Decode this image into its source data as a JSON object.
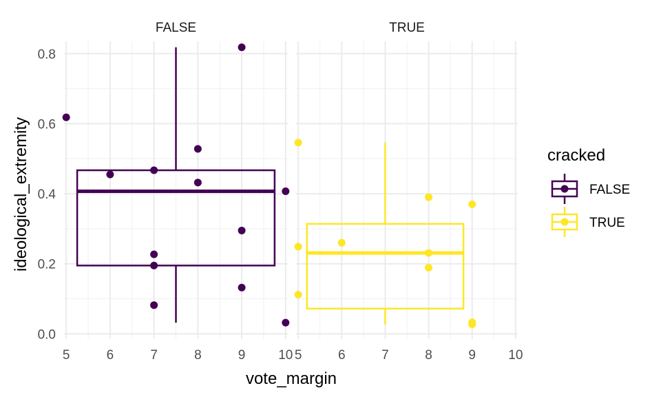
{
  "chart_data": {
    "type": "boxplot",
    "xlabel": "vote_margin",
    "ylabel": "ideological_extremity",
    "xlim": [
      4.95,
      10.05
    ],
    "ylim": [
      -0.015,
      0.835
    ],
    "x_ticks": [
      5,
      6,
      7,
      8,
      9,
      10
    ],
    "y_ticks": [
      0.0,
      0.2,
      0.4,
      0.6,
      0.8
    ],
    "y_tick_labels": [
      "0.0",
      "0.2",
      "0.4",
      "0.6",
      "0.8"
    ],
    "grid": true,
    "legend": {
      "title": "cracked",
      "position": "right",
      "entries": [
        {
          "label": "FALSE",
          "color": "#440154"
        },
        {
          "label": "TRUE",
          "color": "#FDE725"
        }
      ]
    },
    "facets": [
      {
        "label": "FALSE",
        "color": "#440154",
        "box": {
          "x_left": 5.25,
          "x_right": 9.75,
          "x_center": 7.5,
          "q1": 0.195,
          "median": 0.407,
          "q3": 0.467,
          "whisker_low": 0.032,
          "whisker_high": 0.818
        },
        "points": [
          {
            "x": 5,
            "y": 0.618
          },
          {
            "x": 6,
            "y": 0.455
          },
          {
            "x": 7,
            "y": 0.467
          },
          {
            "x": 7,
            "y": 0.227
          },
          {
            "x": 7,
            "y": 0.195
          },
          {
            "x": 7,
            "y": 0.082
          },
          {
            "x": 8,
            "y": 0.528
          },
          {
            "x": 8,
            "y": 0.432
          },
          {
            "x": 9,
            "y": 0.818
          },
          {
            "x": 9,
            "y": 0.295
          },
          {
            "x": 9,
            "y": 0.132
          },
          {
            "x": 10,
            "y": 0.407
          },
          {
            "x": 10,
            "y": 0.032
          }
        ]
      },
      {
        "label": "TRUE",
        "color": "#FDE725",
        "box": {
          "x_left": 5.2,
          "x_right": 8.8,
          "x_center": 7.0,
          "q1": 0.072,
          "median": 0.231,
          "q3": 0.314,
          "whisker_low": 0.027,
          "whisker_high": 0.546
        },
        "points": [
          {
            "x": 5,
            "y": 0.546
          },
          {
            "x": 5,
            "y": 0.249
          },
          {
            "x": 5,
            "y": 0.112
          },
          {
            "x": 6,
            "y": 0.26
          },
          {
            "x": 8,
            "y": 0.39
          },
          {
            "x": 8,
            "y": 0.231
          },
          {
            "x": 8,
            "y": 0.189
          },
          {
            "x": 9,
            "y": 0.37
          },
          {
            "x": 9,
            "y": 0.033
          },
          {
            "x": 9,
            "y": 0.027
          }
        ]
      }
    ]
  }
}
